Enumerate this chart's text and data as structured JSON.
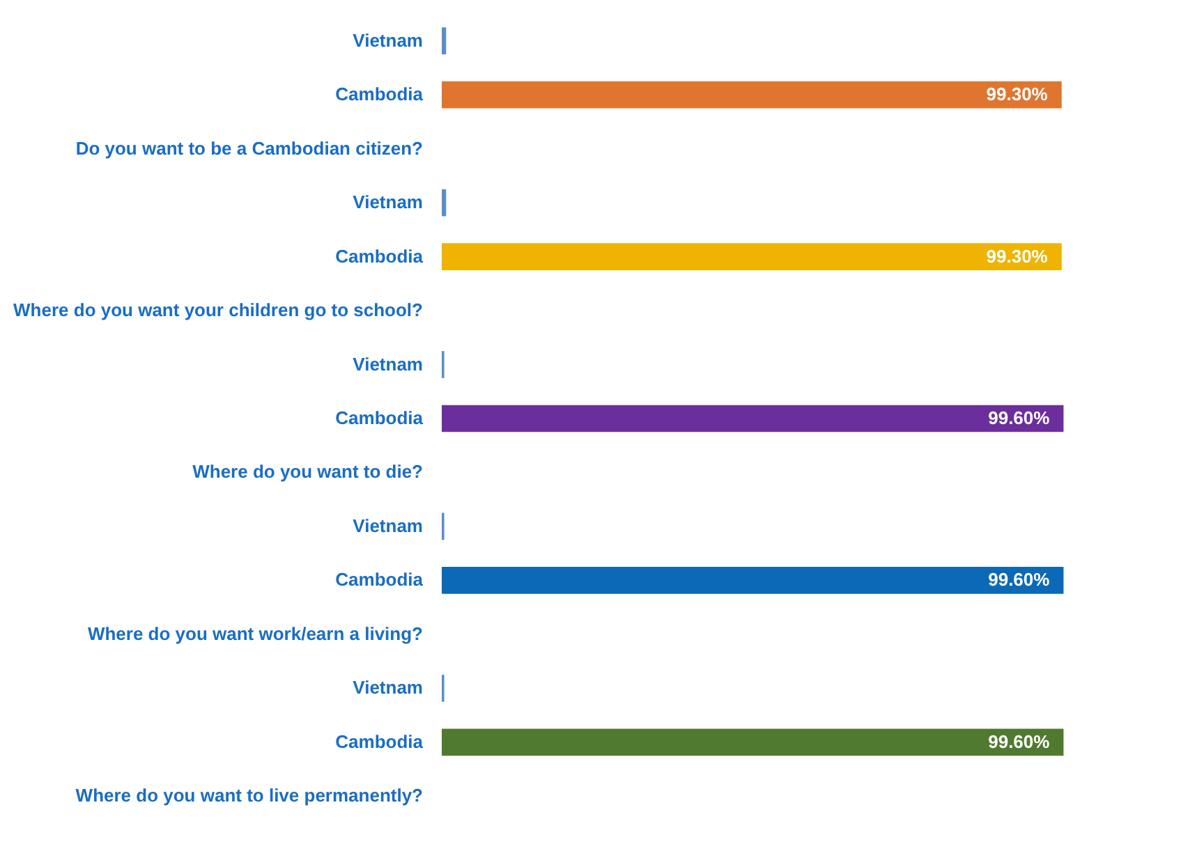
{
  "chart_data": {
    "type": "bar",
    "orientation": "horizontal",
    "categories": [
      "Vietnam",
      "Cambodia",
      "Do you want to be a Cambodian citizen?",
      "Vietnam",
      "Cambodia",
      "Where do you want your children go to school?",
      "Vietnam",
      "Cambodia",
      "Where do you want to die?",
      "Vietnam",
      "Cambodia",
      "Where do you want work/earn a living?",
      "Vietnam",
      "Cambodia",
      "Where do you want to live permanently?"
    ],
    "values": [
      0.7,
      99.3,
      null,
      0.7,
      99.3,
      null,
      0.4,
      99.6,
      null,
      0.4,
      99.6,
      null,
      0.4,
      99.6,
      null
    ],
    "colors": [
      "#5b8ec6",
      "#e0752f",
      null,
      "#5b8ec6",
      "#efb300",
      null,
      "#5b8ec6",
      "#6c2e9c",
      null,
      "#5b8ec6",
      "#0b69b8",
      null,
      "#5b8ec6",
      "#4f7a2f",
      null
    ],
    "value_labels": [
      null,
      "99.30%",
      null,
      null,
      "99.30%",
      null,
      null,
      "99.60%",
      null,
      null,
      "99.60%",
      null,
      null,
      "99.60%",
      null
    ],
    "xlim": [
      0,
      100
    ],
    "tick_labels": "y"
  }
}
